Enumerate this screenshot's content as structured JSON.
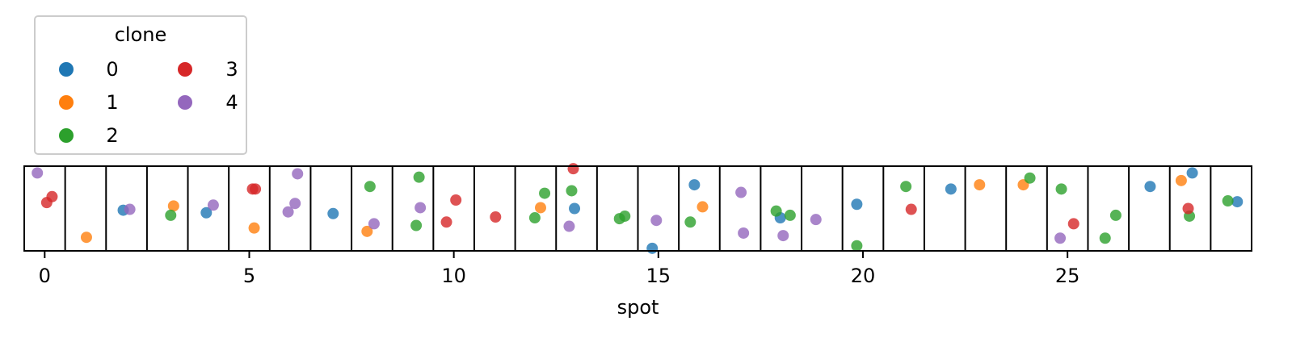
{
  "chart_data": {
    "type": "scatter",
    "title": "",
    "xlabel": "spot",
    "ylabel": "",
    "xlim": [
      -0.5,
      29.5
    ],
    "ylim": [
      0,
      1
    ],
    "x_ticks": [
      0,
      5,
      10,
      15,
      20,
      25
    ],
    "x_tick_labels": [
      "0",
      "5",
      "10",
      "15",
      "20",
      "25"
    ],
    "grid": false,
    "spot_separators": true,
    "legend": {
      "title": "clone",
      "placement": "top-left",
      "entries": [
        "0",
        "1",
        "2",
        "3",
        "4"
      ]
    },
    "series": [
      {
        "name": "0",
        "color": "#1f77b4",
        "points": [
          {
            "x": 1.92,
            "y": 0.48
          },
          {
            "x": 3.95,
            "y": 0.45
          },
          {
            "x": 7.05,
            "y": 0.44
          },
          {
            "x": 12.95,
            "y": 0.5
          },
          {
            "x": 14.85,
            "y": 0.03
          },
          {
            "x": 15.88,
            "y": 0.78
          },
          {
            "x": 17.98,
            "y": 0.39
          },
          {
            "x": 19.85,
            "y": 0.55
          },
          {
            "x": 22.15,
            "y": 0.73
          },
          {
            "x": 27.02,
            "y": 0.76
          },
          {
            "x": 28.05,
            "y": 0.92
          },
          {
            "x": 29.15,
            "y": 0.58
          }
        ]
      },
      {
        "name": "1",
        "color": "#ff7f0e",
        "points": [
          {
            "x": 1.02,
            "y": 0.16
          },
          {
            "x": 3.15,
            "y": 0.53
          },
          {
            "x": 5.12,
            "y": 0.27
          },
          {
            "x": 7.88,
            "y": 0.23
          },
          {
            "x": 12.12,
            "y": 0.51
          },
          {
            "x": 16.08,
            "y": 0.52
          },
          {
            "x": 22.85,
            "y": 0.78
          },
          {
            "x": 23.92,
            "y": 0.78
          },
          {
            "x": 27.78,
            "y": 0.83
          }
        ]
      },
      {
        "name": "2",
        "color": "#2ca02c",
        "points": [
          {
            "x": 3.08,
            "y": 0.42
          },
          {
            "x": 7.95,
            "y": 0.76
          },
          {
            "x": 9.15,
            "y": 0.87
          },
          {
            "x": 9.08,
            "y": 0.3
          },
          {
            "x": 12.22,
            "y": 0.68
          },
          {
            "x": 11.98,
            "y": 0.39
          },
          {
            "x": 12.88,
            "y": 0.71
          },
          {
            "x": 14.05,
            "y": 0.38
          },
          {
            "x": 14.18,
            "y": 0.41
          },
          {
            "x": 15.78,
            "y": 0.34
          },
          {
            "x": 17.88,
            "y": 0.47
          },
          {
            "x": 18.22,
            "y": 0.42
          },
          {
            "x": 19.85,
            "y": 0.06
          },
          {
            "x": 21.05,
            "y": 0.76
          },
          {
            "x": 24.08,
            "y": 0.86
          },
          {
            "x": 24.85,
            "y": 0.73
          },
          {
            "x": 25.92,
            "y": 0.15
          },
          {
            "x": 26.18,
            "y": 0.42
          },
          {
            "x": 27.98,
            "y": 0.41
          },
          {
            "x": 28.92,
            "y": 0.59
          }
        ]
      },
      {
        "name": "3",
        "color": "#d62728",
        "points": [
          {
            "x": 0.18,
            "y": 0.64
          },
          {
            "x": 0.05,
            "y": 0.57
          },
          {
            "x": 5.08,
            "y": 0.73
          },
          {
            "x": 5.15,
            "y": 0.73
          },
          {
            "x": 9.82,
            "y": 0.34
          },
          {
            "x": 10.05,
            "y": 0.6
          },
          {
            "x": 11.02,
            "y": 0.4
          },
          {
            "x": 12.92,
            "y": 0.97
          },
          {
            "x": 21.18,
            "y": 0.49
          },
          {
            "x": 25.15,
            "y": 0.32
          },
          {
            "x": 27.95,
            "y": 0.5
          }
        ]
      },
      {
        "name": "4",
        "color": "#9467bd",
        "points": [
          {
            "x": -0.18,
            "y": 0.92
          },
          {
            "x": 2.08,
            "y": 0.49
          },
          {
            "x": 4.12,
            "y": 0.54
          },
          {
            "x": 5.95,
            "y": 0.46
          },
          {
            "x": 6.12,
            "y": 0.56
          },
          {
            "x": 6.18,
            "y": 0.91
          },
          {
            "x": 8.05,
            "y": 0.32
          },
          {
            "x": 9.18,
            "y": 0.51
          },
          {
            "x": 12.82,
            "y": 0.29
          },
          {
            "x": 14.95,
            "y": 0.36
          },
          {
            "x": 17.02,
            "y": 0.69
          },
          {
            "x": 17.08,
            "y": 0.21
          },
          {
            "x": 18.05,
            "y": 0.18
          },
          {
            "x": 18.85,
            "y": 0.37
          },
          {
            "x": 24.82,
            "y": 0.15
          }
        ]
      }
    ]
  }
}
